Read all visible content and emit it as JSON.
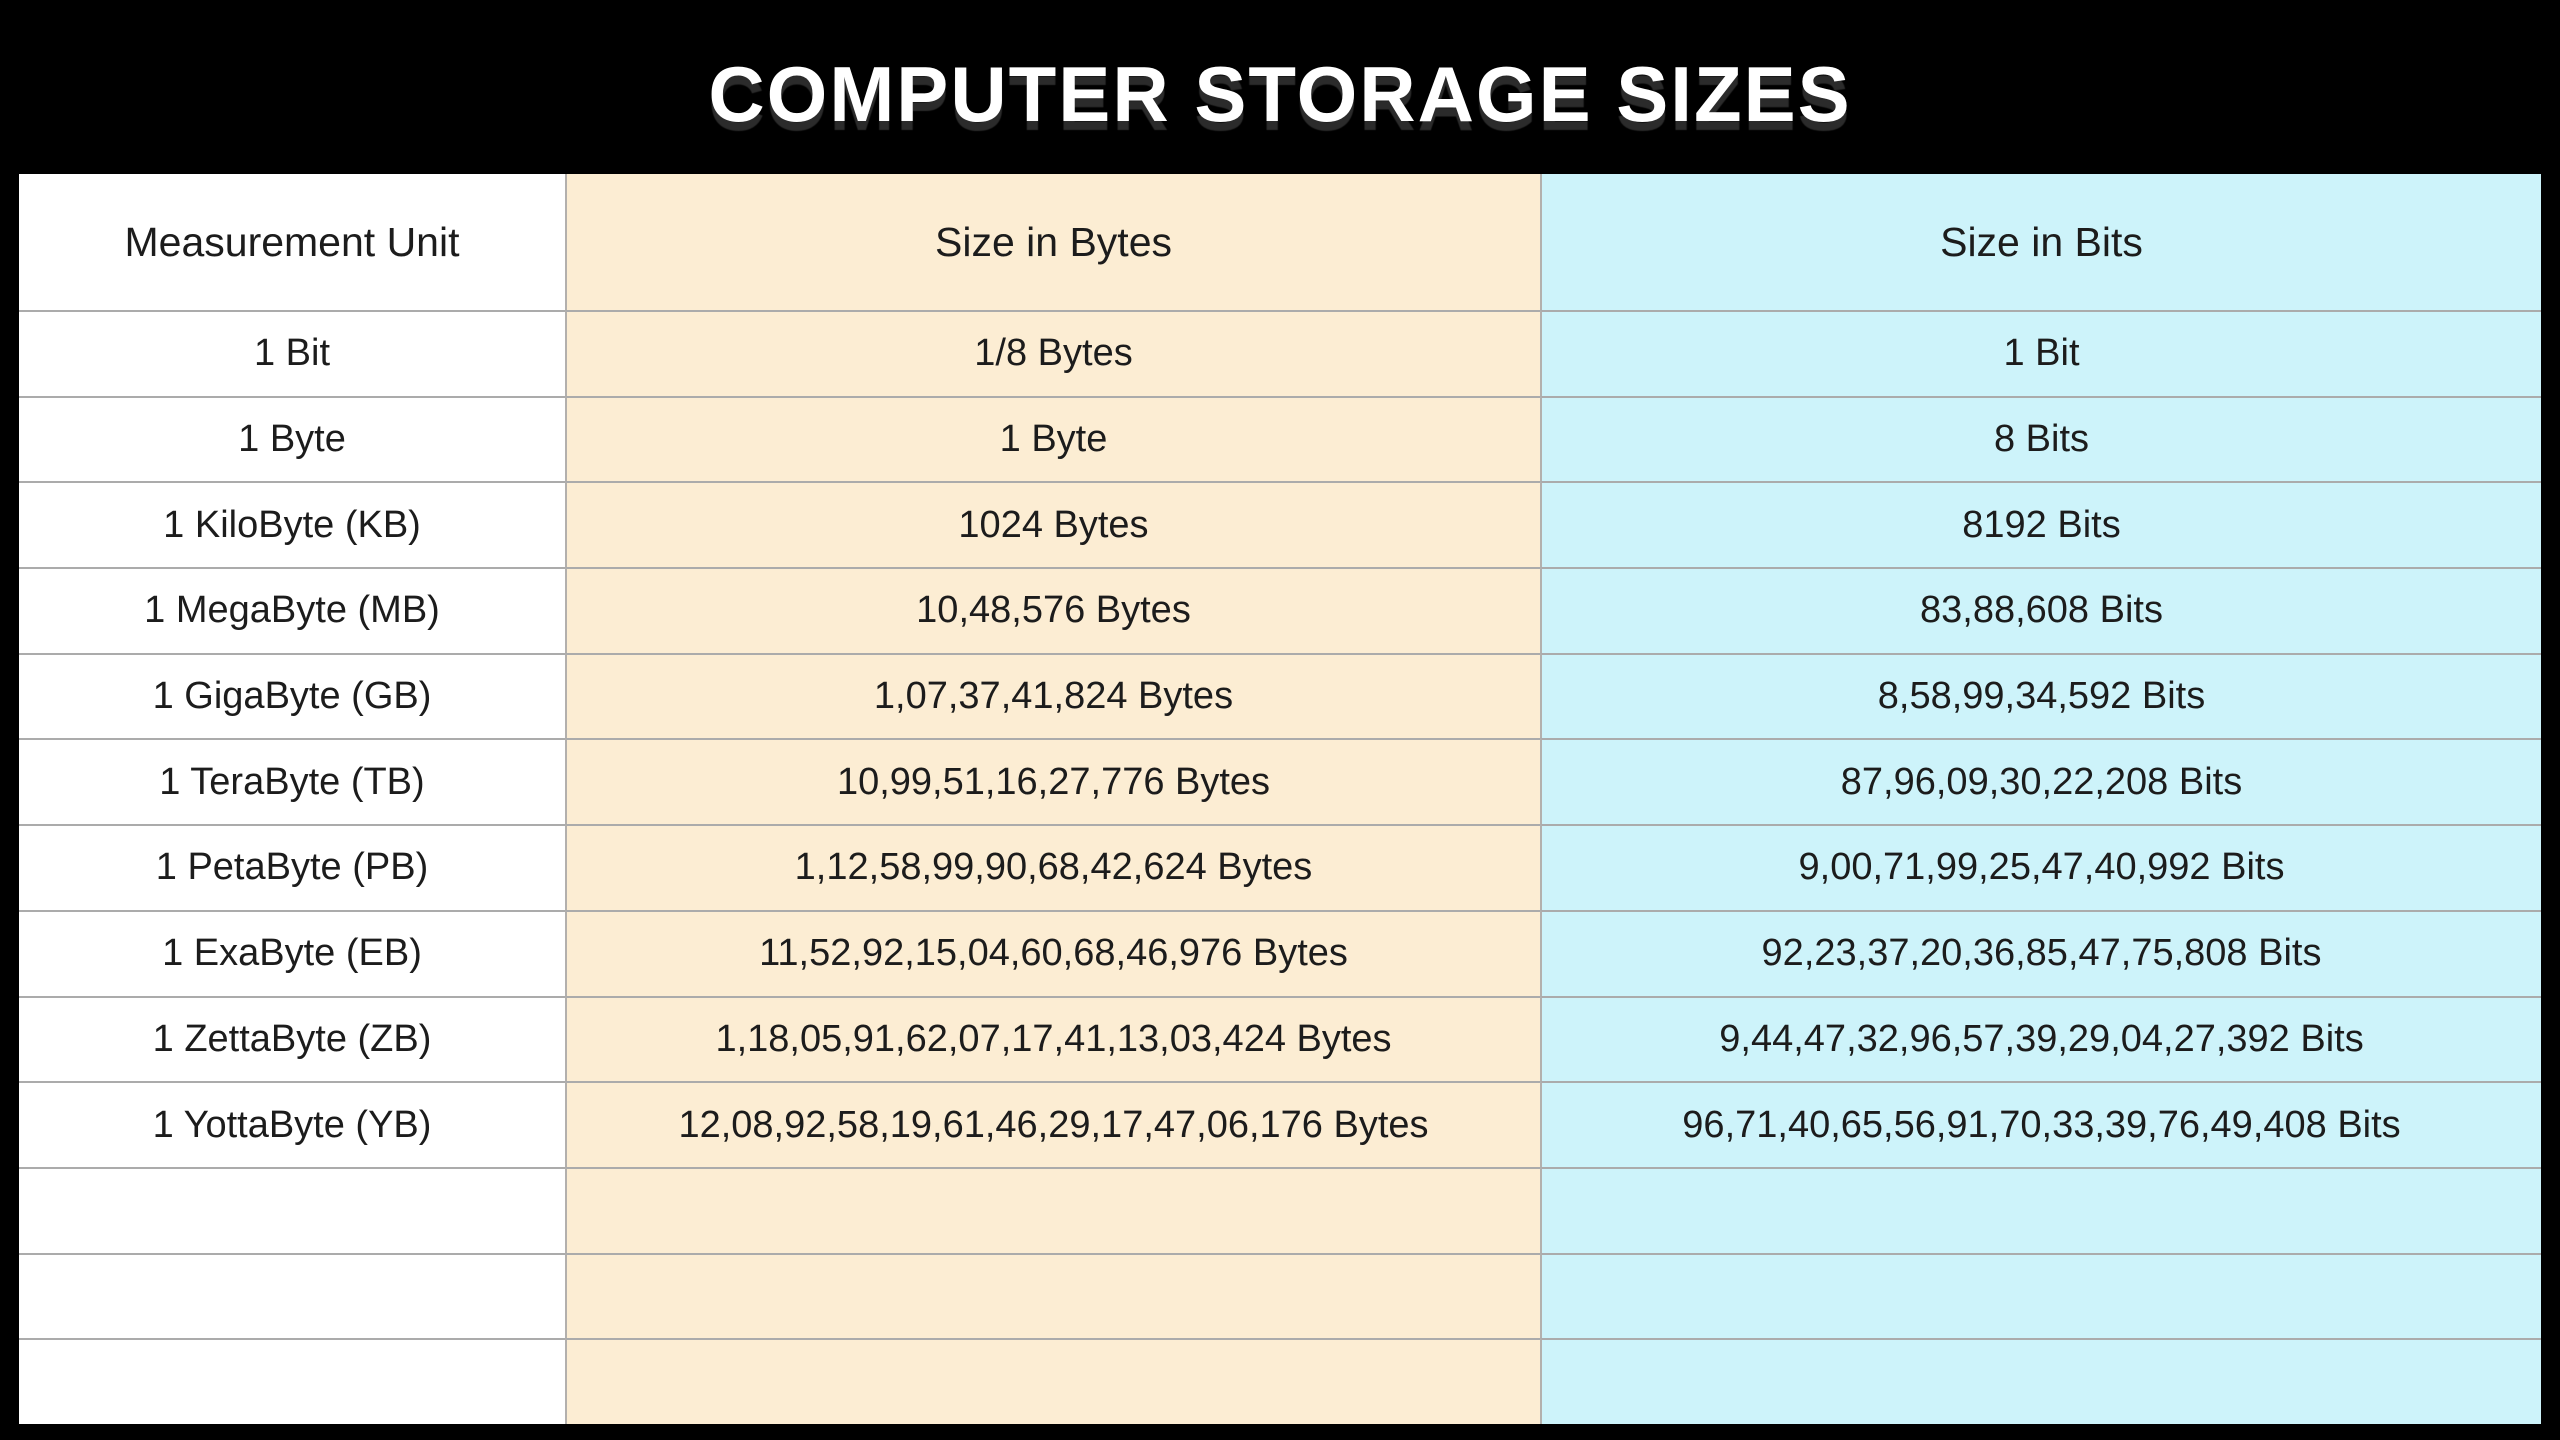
{
  "title": "COMPUTER STORAGE SIZES",
  "colors": {
    "background": "#000000",
    "title_text": "#FFFFFF",
    "unit_column_bg": "#FFFFFF",
    "bytes_column_bg": "#FCEDD3",
    "bits_column_bg": "#CDF3FA",
    "grid_line": "#ABABAB",
    "cell_text": "#1C1C1C"
  },
  "chart_data": {
    "type": "table",
    "title": "COMPUTER STORAGE SIZES",
    "columns": [
      "Measurement Unit",
      "Size in Bytes",
      "Size in Bits"
    ],
    "rows": [
      [
        "1 Bit",
        "1/8 Bytes",
        "1 Bit"
      ],
      [
        "1 Byte",
        "1 Byte",
        "8 Bits"
      ],
      [
        "1 KiloByte (KB)",
        "1024 Bytes",
        "8192 Bits"
      ],
      [
        "1 MegaByte (MB)",
        "10,48,576 Bytes",
        "83,88,608 Bits"
      ],
      [
        "1 GigaByte (GB)",
        "1,07,37,41,824 Bytes",
        "8,58,99,34,592 Bits"
      ],
      [
        "1 TeraByte (TB)",
        "10,99,51,16,27,776 Bytes",
        "87,96,09,30,22,208 Bits"
      ],
      [
        "1 PetaByte (PB)",
        "1,12,58,99,90,68,42,624 Bytes",
        "9,00,71,99,25,47,40,992 Bits"
      ],
      [
        "1 ExaByte (EB)",
        "11,52,92,15,04,60,68,46,976 Bytes",
        "92,23,37,20,36,85,47,75,808 Bits"
      ],
      [
        "1 ZettaByte (ZB)",
        "1,18,05,91,62,07,17,41,13,03,424 Bytes",
        "9,44,47,32,96,57,39,29,04,27,392 Bits"
      ],
      [
        "1 YottaByte (YB)",
        "12,08,92,58,19,61,46,29,17,47,06,176 Bytes",
        "96,71,40,65,56,91,70,33,39,76,49,408 Bits"
      ]
    ],
    "empty_trailing_rows": 3,
    "layout": {
      "grid": "on",
      "header_row": true,
      "column_alignment": "center"
    }
  }
}
